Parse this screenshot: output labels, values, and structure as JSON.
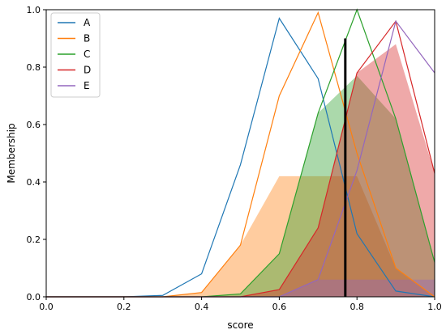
{
  "chart_data": {
    "type": "line",
    "xlabel": "score",
    "ylabel": "Membership",
    "xlim": [
      0.0,
      1.0
    ],
    "ylim": [
      0.0,
      1.0
    ],
    "xticks": [
      "0.0",
      "0.2",
      "0.4",
      "0.6",
      "0.8",
      "1.0"
    ],
    "yticks": [
      "0.0",
      "0.2",
      "0.4",
      "0.6",
      "0.8",
      "1.0"
    ],
    "legend_position": "top-left",
    "grid": false,
    "x": [
      0.0,
      0.1,
      0.2,
      0.3,
      0.4,
      0.5,
      0.6,
      0.7,
      0.8,
      0.9,
      1.0
    ],
    "series": [
      {
        "name": "A",
        "color": "#1f77b4",
        "values": [
          0.0,
          0.0,
          0.0,
          0.005,
          0.08,
          0.46,
          0.97,
          0.76,
          0.22,
          0.02,
          0.0
        ]
      },
      {
        "name": "B",
        "color": "#ff7f0e",
        "values": [
          0.0,
          0.0,
          0.0,
          0.0,
          0.015,
          0.18,
          0.7,
          0.99,
          0.5,
          0.1,
          0.0
        ]
      },
      {
        "name": "C",
        "color": "#2ca02c",
        "values": [
          0.0,
          0.0,
          0.0,
          0.0,
          0.0,
          0.01,
          0.15,
          0.64,
          1.0,
          0.62,
          0.12
        ]
      },
      {
        "name": "D",
        "color": "#d62728",
        "values": [
          0.0,
          0.0,
          0.0,
          0.0,
          0.0,
          0.0,
          0.025,
          0.24,
          0.78,
          0.96,
          0.43
        ]
      },
      {
        "name": "E",
        "color": "#9467bd",
        "values": [
          0.0,
          0.0,
          0.0,
          0.0,
          0.0,
          0.0,
          0.0,
          0.06,
          0.44,
          0.96,
          0.78
        ]
      }
    ],
    "activations": [
      {
        "series": "B",
        "color": "#ff7f0e",
        "level": 0.42
      },
      {
        "series": "C",
        "color": "#2ca02c",
        "level": 0.77
      },
      {
        "series": "D",
        "color": "#d62728",
        "level": 0.88
      },
      {
        "series": "E",
        "color": "#9467bd",
        "level": 0.06
      }
    ],
    "marker": {
      "x": 0.77,
      "y_top": 0.9,
      "color": "#000000"
    }
  }
}
